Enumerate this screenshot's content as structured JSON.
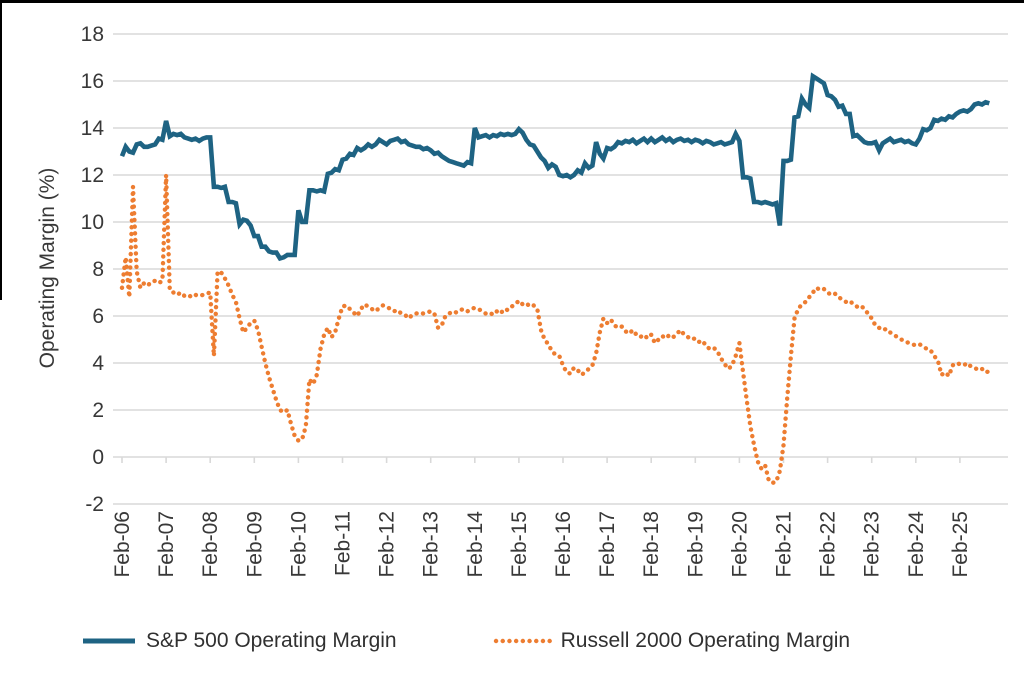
{
  "frame": {
    "border_color": "#000000"
  },
  "chart_data": {
    "type": "line",
    "title": "",
    "xlabel": "",
    "ylabel": "Operating Margin (%)",
    "ylim": [
      -2,
      18
    ],
    "grid": "horizontal",
    "legend_position": "bottom",
    "x_start_label": "Feb-06",
    "points_per_year": 12,
    "y_axis": {
      "ticks": [
        18,
        16,
        14,
        12,
        10,
        8,
        6,
        4,
        2,
        0,
        -2
      ]
    },
    "x_axis": {
      "labels": [
        "Feb-06",
        "Feb-07",
        "Feb-08",
        "Feb-09",
        "Feb-10",
        "Feb-11",
        "Feb-12",
        "Feb-13",
        "Feb-14",
        "Feb-15",
        "Feb-16",
        "Feb-17",
        "Feb-18",
        "Feb-19",
        "Feb-20",
        "Feb-21",
        "Feb-22",
        "Feb-23",
        "Feb-24",
        "Feb-25"
      ]
    },
    "colors": {
      "sp500": "#1e6383",
      "russell2000": "#ed7d31",
      "gridline": "#d9d9d9",
      "text": "#383838"
    },
    "series": [
      {
        "name": "S&P 500 Operating Margin",
        "color": "#1e6383",
        "style": "solid",
        "values": [
          12.8,
          13.2,
          13.0,
          12.95,
          13.3,
          13.35,
          13.2,
          13.2,
          13.25,
          13.3,
          13.55,
          13.5,
          14.3,
          13.65,
          13.75,
          13.7,
          13.75,
          13.6,
          13.55,
          13.5,
          13.55,
          13.45,
          13.55,
          13.6,
          13.6,
          11.5,
          11.5,
          11.45,
          11.5,
          10.85,
          10.85,
          10.8,
          9.9,
          10.1,
          10.05,
          9.85,
          9.4,
          9.4,
          8.95,
          8.95,
          8.75,
          8.7,
          8.7,
          8.45,
          8.5,
          8.6,
          8.6,
          8.6,
          10.5,
          10.0,
          10.0,
          11.35,
          11.35,
          11.3,
          11.35,
          11.3,
          12.05,
          12.1,
          12.25,
          12.2,
          12.65,
          12.7,
          12.9,
          12.85,
          13.15,
          13.05,
          13.15,
          13.3,
          13.2,
          13.3,
          13.5,
          13.4,
          13.3,
          13.45,
          13.5,
          13.55,
          13.4,
          13.45,
          13.3,
          13.25,
          13.2,
          13.2,
          13.1,
          13.15,
          13.05,
          12.9,
          12.95,
          12.8,
          12.7,
          12.6,
          12.55,
          12.5,
          12.45,
          12.4,
          12.55,
          12.5,
          14.0,
          13.6,
          13.65,
          13.7,
          13.6,
          13.7,
          13.65,
          13.75,
          13.7,
          13.75,
          13.7,
          13.75,
          13.95,
          13.8,
          13.5,
          13.3,
          13.25,
          13.0,
          12.75,
          12.6,
          12.3,
          12.45,
          12.35,
          12.0,
          11.95,
          12.0,
          11.9,
          12.0,
          12.2,
          12.1,
          12.5,
          12.3,
          12.4,
          13.4,
          12.9,
          12.7,
          13.15,
          13.1,
          13.2,
          13.4,
          13.35,
          13.45,
          13.4,
          13.5,
          13.35,
          13.45,
          13.55,
          13.4,
          13.55,
          13.4,
          13.5,
          13.6,
          13.45,
          13.55,
          13.4,
          13.5,
          13.55,
          13.45,
          13.5,
          13.4,
          13.5,
          13.45,
          13.35,
          13.45,
          13.4,
          13.3,
          13.35,
          13.4,
          13.3,
          13.35,
          13.4,
          13.75,
          13.45,
          11.9,
          11.9,
          11.85,
          10.85,
          10.85,
          10.8,
          10.85,
          10.8,
          10.75,
          10.8,
          9.85,
          12.6,
          12.6,
          12.65,
          14.45,
          14.5,
          15.25,
          15.0,
          14.85,
          16.2,
          16.1,
          16.0,
          15.9,
          15.4,
          15.35,
          15.2,
          14.9,
          14.95,
          14.6,
          14.6,
          13.65,
          13.7,
          13.55,
          13.4,
          13.35,
          13.35,
          13.4,
          13.05,
          13.35,
          13.45,
          13.55,
          13.4,
          13.45,
          13.5,
          13.4,
          13.45,
          13.35,
          13.3,
          13.55,
          13.95,
          13.9,
          14.0,
          14.35,
          14.3,
          14.4,
          14.35,
          14.5,
          14.45,
          14.6,
          14.7,
          14.75,
          14.7,
          14.8,
          15.0,
          15.05,
          15.0,
          15.1,
          15.05
        ]
      },
      {
        "name": "Russell 2000 Operating Margin",
        "color": "#ed7d31",
        "style": "dotted",
        "values": [
          7.2,
          8.5,
          6.8,
          11.5,
          7.9,
          7.2,
          7.4,
          7.3,
          7.45,
          7.5,
          7.4,
          7.5,
          12.0,
          7.1,
          7.0,
          6.9,
          7.0,
          6.85,
          6.9,
          6.8,
          6.9,
          6.85,
          6.9,
          6.95,
          7.0,
          4.3,
          7.9,
          7.85,
          7.6,
          7.3,
          6.9,
          6.6,
          5.9,
          5.3,
          5.5,
          5.7,
          5.8,
          5.4,
          4.7,
          4.0,
          3.4,
          2.9,
          2.4,
          2.0,
          1.9,
          2.0,
          1.4,
          0.9,
          0.7,
          0.75,
          1.3,
          3.3,
          3.1,
          3.5,
          4.6,
          5.2,
          5.5,
          5.1,
          5.3,
          5.9,
          6.4,
          6.45,
          6.3,
          6.15,
          6.0,
          6.3,
          6.5,
          6.4,
          6.3,
          6.2,
          6.35,
          6.45,
          6.4,
          6.3,
          6.2,
          6.25,
          6.1,
          6.05,
          5.9,
          6.05,
          6.1,
          6.15,
          6.1,
          6.15,
          6.2,
          6.1,
          5.5,
          5.6,
          6.0,
          6.1,
          6.2,
          6.15,
          6.25,
          6.3,
          6.2,
          6.3,
          6.35,
          6.3,
          6.2,
          6.1,
          6.15,
          6.05,
          6.2,
          6.1,
          6.3,
          6.25,
          6.4,
          6.5,
          6.65,
          6.5,
          6.55,
          6.4,
          6.45,
          6.3,
          5.4,
          5.0,
          4.8,
          4.5,
          4.35,
          4.3,
          3.9,
          3.6,
          3.55,
          3.8,
          3.7,
          3.5,
          3.6,
          3.75,
          3.9,
          4.4,
          5.3,
          5.9,
          5.7,
          5.85,
          5.6,
          5.5,
          5.55,
          5.35,
          5.25,
          5.4,
          5.2,
          5.1,
          5.2,
          5.05,
          5.2,
          4.85,
          5.0,
          5.15,
          5.05,
          5.2,
          5.1,
          5.25,
          5.4,
          5.2,
          5.1,
          5.0,
          5.05,
          4.9,
          4.95,
          4.7,
          4.6,
          4.65,
          4.5,
          4.2,
          3.95,
          3.75,
          3.9,
          4.3,
          4.85,
          3.6,
          2.4,
          1.3,
          0.5,
          -0.2,
          -0.5,
          -0.35,
          -1.0,
          -1.1,
          -1.05,
          -0.6,
          0.5,
          2.5,
          4.3,
          5.9,
          6.3,
          6.5,
          6.6,
          6.8,
          7.0,
          7.2,
          7.1,
          7.15,
          7.0,
          6.9,
          6.95,
          6.8,
          6.7,
          6.6,
          6.65,
          6.5,
          6.4,
          6.45,
          6.3,
          6.1,
          5.9,
          5.6,
          5.5,
          5.4,
          5.45,
          5.3,
          5.2,
          5.1,
          5.0,
          4.95,
          4.85,
          4.8,
          4.75,
          4.8,
          4.7,
          4.6,
          4.55,
          4.3,
          4.1,
          3.5,
          3.6,
          3.45,
          3.9,
          4.0,
          3.95,
          3.9,
          4.0,
          3.85,
          3.8,
          3.7,
          3.75,
          3.6,
          3.65
        ]
      }
    ]
  },
  "legend": {
    "sp500_label": "S&P 500 Operating Margin",
    "russell_label": "Russell 2000 Operating Margin"
  }
}
